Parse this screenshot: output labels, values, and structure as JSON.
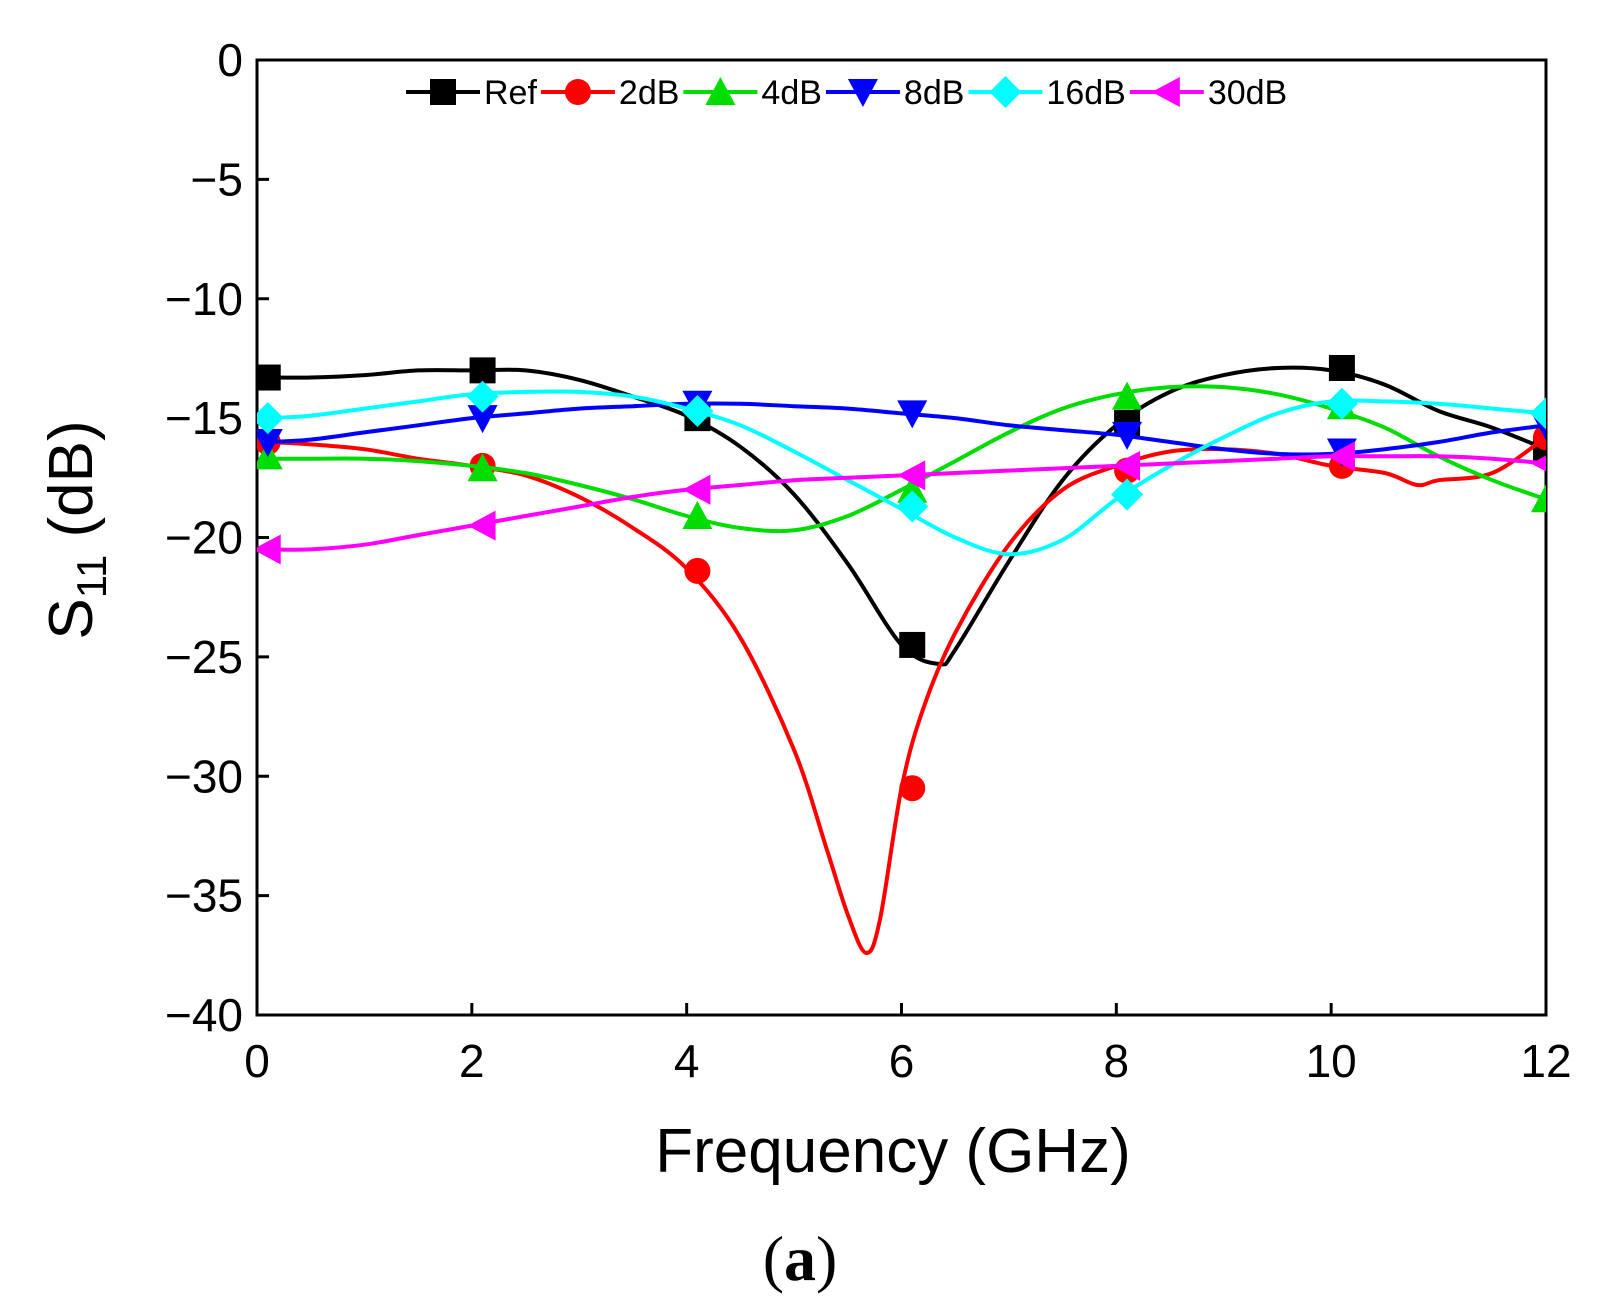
{
  "chart_data": {
    "type": "line",
    "xlabel": "Frequency (GHz)",
    "ylabel_main": "S",
    "ylabel_sub": "11",
    "ylabel_unit": " (dB)",
    "panel_label_open": "(",
    "panel_label_letter": "a",
    "panel_label_close": ")",
    "xlim": [
      0,
      12
    ],
    "ylim": [
      -40,
      0
    ],
    "xticks": [
      0,
      2,
      4,
      6,
      8,
      10,
      12
    ],
    "yticks": [
      0,
      -5,
      -10,
      -15,
      -20,
      -25,
      -30,
      -35,
      -40
    ],
    "xtick_labels": [
      "0",
      "2",
      "4",
      "6",
      "8",
      "10",
      "12"
    ],
    "ytick_labels": [
      "0",
      "−5",
      "−10",
      "−15",
      "−20",
      "−25",
      "−30",
      "−35",
      "−40"
    ],
    "legend_position": "top-right",
    "grid": false,
    "series": [
      {
        "name": "Ref",
        "color": "#000000",
        "marker": "square",
        "x": [
          0.1,
          0.5,
          1,
          1.5,
          2,
          2.5,
          3,
          3.5,
          4,
          4.5,
          5,
          5.5,
          6,
          6.35,
          6.5,
          7,
          7.5,
          8,
          8.5,
          9,
          9.5,
          10,
          10.5,
          11,
          11.5,
          12
        ],
        "y": [
          -13.3,
          -13.3,
          -13.2,
          -13.0,
          -13.0,
          -13.0,
          -13.4,
          -14.1,
          -14.9,
          -16.2,
          -18.2,
          -21.1,
          -24.5,
          -25.3,
          -24.7,
          -21.0,
          -17.6,
          -15.3,
          -13.9,
          -13.2,
          -12.9,
          -13.0,
          -13.6,
          -14.7,
          -15.4,
          -16.3
        ],
        "marker_x": [
          0.1,
          2.1,
          4.1,
          6.1,
          8.1,
          10.1,
          12
        ],
        "marker_y": [
          -13.3,
          -13.0,
          -15.0,
          -24.5,
          -15.2,
          -12.9,
          -16.3
        ]
      },
      {
        "name": "2dB",
        "color": "#ff0000",
        "marker": "circle",
        "x": [
          0.1,
          0.5,
          1,
          1.5,
          2,
          2.5,
          3,
          3.5,
          4,
          4.5,
          5,
          5.3,
          5.5,
          5.67,
          5.8,
          6,
          6.2,
          6.5,
          7,
          7.5,
          8,
          8.5,
          9,
          9.5,
          10,
          10.5,
          10.8,
          11,
          11.5,
          12
        ],
        "y": [
          -16.0,
          -16.1,
          -16.3,
          -16.7,
          -17.0,
          -17.4,
          -18.3,
          -19.6,
          -21.3,
          -24.2,
          -28.9,
          -33.0,
          -35.8,
          -37.4,
          -36.0,
          -30.5,
          -27.2,
          -24.0,
          -20.3,
          -18.0,
          -17.0,
          -16.4,
          -16.3,
          -16.5,
          -17.0,
          -17.3,
          -17.8,
          -17.6,
          -17.3,
          -15.8
        ],
        "marker_x": [
          0.1,
          2.1,
          4.1,
          6.1,
          8.1,
          10.1,
          12
        ],
        "marker_y": [
          -16.0,
          -17.0,
          -21.4,
          -30.5,
          -17.2,
          -17.0,
          -15.8
        ]
      },
      {
        "name": "4dB",
        "color": "#00dd00",
        "marker": "triangle-up",
        "x": [
          0.1,
          0.5,
          1,
          1.5,
          2,
          2.5,
          3,
          3.5,
          4,
          4.5,
          5,
          5.5,
          6,
          6.5,
          7,
          7.5,
          8,
          8.5,
          9,
          9.5,
          10,
          10.5,
          11,
          11.5,
          12
        ],
        "y": [
          -16.7,
          -16.7,
          -16.7,
          -16.8,
          -17.0,
          -17.3,
          -17.8,
          -18.4,
          -19.1,
          -19.6,
          -19.7,
          -19.1,
          -18.0,
          -16.8,
          -15.6,
          -14.6,
          -14.0,
          -13.7,
          -13.7,
          -14.0,
          -14.6,
          -15.4,
          -16.6,
          -17.6,
          -18.4
        ],
        "marker_x": [
          0.1,
          2.1,
          4.1,
          6.1,
          8.1,
          10.1,
          12
        ],
        "marker_y": [
          -16.6,
          -17.1,
          -19.1,
          -18.0,
          -14.1,
          -14.5,
          -18.4
        ]
      },
      {
        "name": "8dB",
        "color": "#0000ff",
        "marker": "triangle-down",
        "x": [
          0.1,
          0.5,
          1,
          1.5,
          2,
          2.5,
          3,
          3.5,
          4,
          4.5,
          5,
          5.5,
          6,
          6.5,
          7,
          7.5,
          8,
          8.5,
          9,
          9.5,
          10,
          10.5,
          11,
          11.5,
          12
        ],
        "y": [
          -16.0,
          -15.9,
          -15.6,
          -15.3,
          -15.0,
          -14.8,
          -14.6,
          -14.5,
          -14.4,
          -14.4,
          -14.5,
          -14.6,
          -14.8,
          -15.0,
          -15.3,
          -15.5,
          -15.7,
          -16.0,
          -16.3,
          -16.5,
          -16.5,
          -16.3,
          -16.0,
          -15.6,
          -15.3
        ],
        "marker_x": [
          0.1,
          2.1,
          4.1,
          6.1,
          8.1,
          10.1,
          12
        ],
        "marker_y": [
          -16.0,
          -15.0,
          -14.4,
          -14.8,
          -15.7,
          -16.4,
          -15.3
        ]
      },
      {
        "name": "16dB",
        "color": "#00ffff",
        "marker": "diamond",
        "x": [
          0.1,
          0.5,
          1,
          1.5,
          2,
          2.5,
          3,
          3.5,
          4,
          4.5,
          5,
          5.5,
          6,
          6.5,
          7,
          7.5,
          8,
          8.5,
          9,
          9.5,
          10,
          10.5,
          11,
          11.5,
          12
        ],
        "y": [
          -15.0,
          -14.9,
          -14.6,
          -14.3,
          -14.0,
          -13.9,
          -13.9,
          -14.1,
          -14.6,
          -15.3,
          -16.4,
          -17.6,
          -18.8,
          -20.0,
          -20.7,
          -20.1,
          -18.4,
          -17.0,
          -15.8,
          -14.8,
          -14.3,
          -14.3,
          -14.4,
          -14.6,
          -14.8
        ],
        "marker_x": [
          0.1,
          2.1,
          4.1,
          6.1,
          8.1,
          10.1,
          12
        ],
        "marker_y": [
          -15.0,
          -14.1,
          -14.7,
          -18.7,
          -18.2,
          -14.4,
          -14.8
        ]
      },
      {
        "name": "30dB",
        "color": "#ff00ff",
        "marker": "triangle-left",
        "x": [
          0.1,
          0.5,
          1,
          1.5,
          2,
          2.5,
          3,
          3.5,
          4,
          4.5,
          5,
          5.5,
          6,
          6.5,
          7,
          7.5,
          8,
          8.5,
          9,
          9.5,
          10,
          10.5,
          11,
          11.5,
          12
        ],
        "y": [
          -20.5,
          -20.5,
          -20.3,
          -19.9,
          -19.5,
          -19.1,
          -18.7,
          -18.3,
          -18.0,
          -17.8,
          -17.6,
          -17.5,
          -17.4,
          -17.3,
          -17.2,
          -17.1,
          -17.0,
          -16.9,
          -16.8,
          -16.7,
          -16.6,
          -16.6,
          -16.6,
          -16.7,
          -16.9
        ],
        "marker_x": [
          0.1,
          2.1,
          4.1,
          6.1,
          8.1,
          10.1,
          12
        ],
        "marker_y": [
          -20.5,
          -19.5,
          -18.0,
          -17.4,
          -17.0,
          -16.6,
          -16.9
        ]
      }
    ]
  }
}
